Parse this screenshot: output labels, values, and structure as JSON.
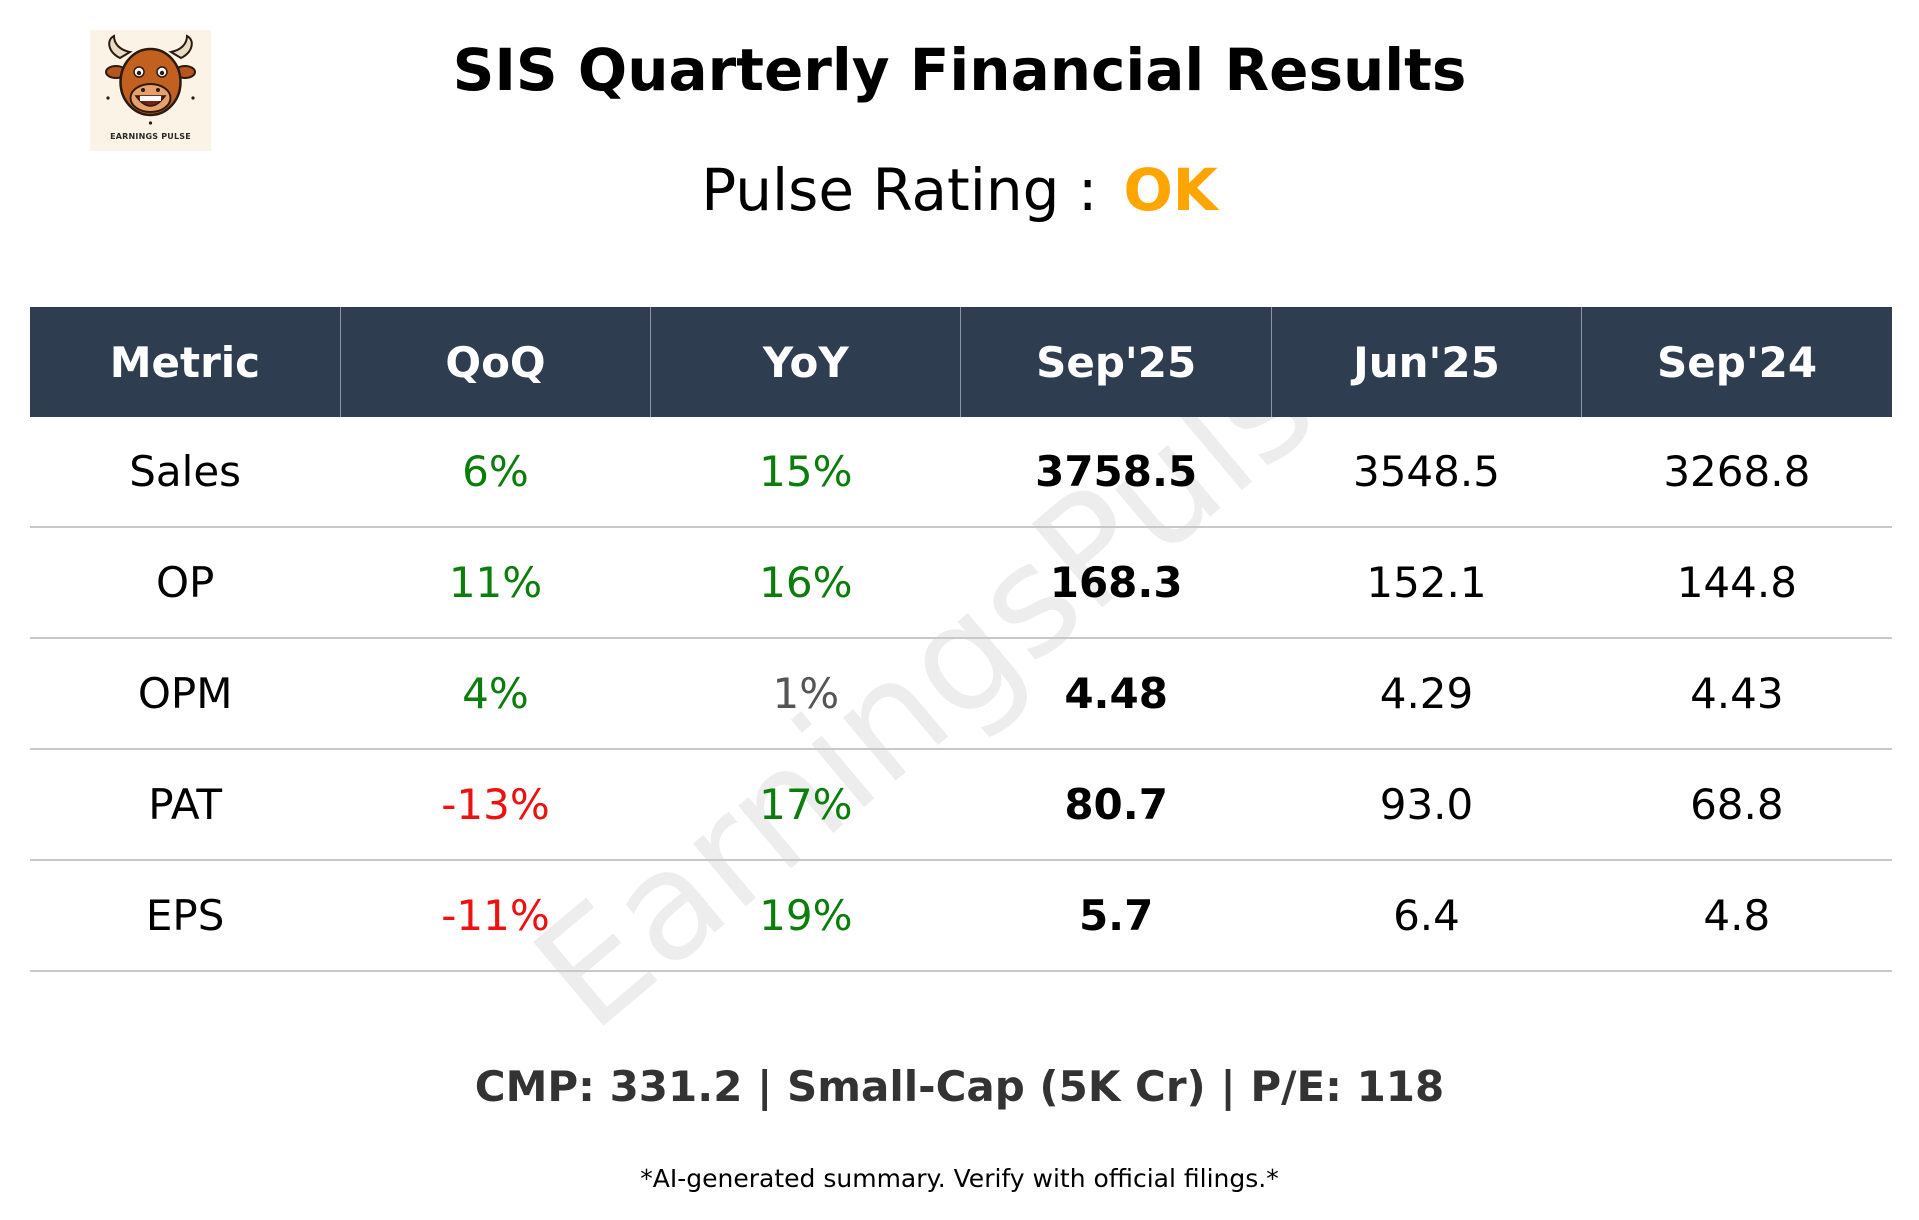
{
  "header": {
    "title": "SIS Quarterly Financial Results",
    "rating_label": "Pulse Rating :",
    "rating_value": "OK",
    "rating_color": "#ffa500",
    "logo_text": "EARNINGS PULSE",
    "logo_icon": "bull-mascot-icon"
  },
  "watermark": "EarningsPulse",
  "table": {
    "columns": [
      "Metric",
      "QoQ",
      "YoY",
      "Sep'25",
      "Jun'25",
      "Sep'24"
    ],
    "rows": [
      {
        "metric": "Sales",
        "qoq": "6%",
        "yoy": "15%",
        "sep25": "3758.5",
        "jun25": "3548.5",
        "sep24": "3268.8"
      },
      {
        "metric": "OP",
        "qoq": "11%",
        "yoy": "16%",
        "sep25": "168.3",
        "jun25": "152.1",
        "sep24": "144.8"
      },
      {
        "metric": "OPM",
        "qoq": "4%",
        "yoy": "1%",
        "sep25": "4.48",
        "jun25": "4.29",
        "sep24": "4.43"
      },
      {
        "metric": "PAT",
        "qoq": "-13%",
        "yoy": "17%",
        "sep25": "80.7",
        "jun25": "93.0",
        "sep24": "68.8"
      },
      {
        "metric": "EPS",
        "qoq": "-11%",
        "yoy": "19%",
        "sep25": "5.7",
        "jun25": "6.4",
        "sep24": "4.8"
      }
    ],
    "colors": {
      "header_bg": "#2e3e50",
      "positive": "#0a7d0a",
      "negative": "#ee1111",
      "neutral": "#555555"
    }
  },
  "footer": {
    "summary": "CMP: 331.2 | Small-Cap (5K Cr) | P/E: 118",
    "disclaimer": "*AI-generated summary. Verify with official filings.*"
  }
}
